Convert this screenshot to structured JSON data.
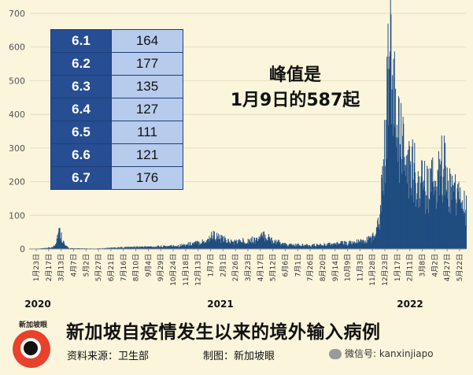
{
  "chart_data": {
    "type": "bar",
    "title": "新加坡自疫情发生以来的境外输入病例",
    "xlabel": "",
    "ylabel": "",
    "ylim": [
      0,
      700
    ],
    "yticks": [
      0,
      100,
      200,
      300,
      400,
      500,
      600,
      700
    ],
    "xlim": [
      "2020-01-23",
      "2022-06-10"
    ],
    "xtick_labels": [
      "1月23日",
      "2月17日",
      "3月13日",
      "4月7日",
      "5月2日",
      "5月27日",
      "6月21日",
      "7月16日",
      "8月10日",
      "9月4日",
      "9月29日",
      "10月24日",
      "11月18日",
      "12月13日",
      "1月7日",
      "2月1日",
      "2月26日",
      "3月23日",
      "4月17日",
      "5月12日",
      "6月6日",
      "7月1日",
      "7月26日",
      "8月20日",
      "9月14日",
      "10月9日",
      "11月3日",
      "11月28日",
      "12月23日",
      "1月17日",
      "2月11日",
      "3月8日",
      "4月2日",
      "4月27日",
      "5月22日"
    ],
    "year_labels": [
      "2020",
      "2021",
      "2022"
    ],
    "bar_color": "#1f4d80",
    "series_points": [
      {
        "x": "2020-01-23",
        "y": 0
      },
      {
        "x": "2020-02-20",
        "y": 2
      },
      {
        "x": "2020-03-08",
        "y": 5
      },
      {
        "x": "2020-03-14",
        "y": 20
      },
      {
        "x": "2020-03-18",
        "y": 45
      },
      {
        "x": "2020-03-21",
        "y": 52
      },
      {
        "x": "2020-03-26",
        "y": 35
      },
      {
        "x": "2020-04-01",
        "y": 10
      },
      {
        "x": "2020-04-10",
        "y": 2
      },
      {
        "x": "2020-06-01",
        "y": 1
      },
      {
        "x": "2020-07-10",
        "y": 4
      },
      {
        "x": "2020-08-20",
        "y": 6
      },
      {
        "x": "2020-10-01",
        "y": 7
      },
      {
        "x": "2020-11-15",
        "y": 10
      },
      {
        "x": "2020-12-20",
        "y": 18
      },
      {
        "x": "2021-01-10",
        "y": 25
      },
      {
        "x": "2021-01-20",
        "y": 42
      },
      {
        "x": "2021-02-05",
        "y": 30
      },
      {
        "x": "2021-03-01",
        "y": 20
      },
      {
        "x": "2021-04-20",
        "y": 28
      },
      {
        "x": "2021-05-05",
        "y": 40
      },
      {
        "x": "2021-05-20",
        "y": 25
      },
      {
        "x": "2021-06-15",
        "y": 12
      },
      {
        "x": "2021-08-01",
        "y": 10
      },
      {
        "x": "2021-09-15",
        "y": 14
      },
      {
        "x": "2021-10-20",
        "y": 18
      },
      {
        "x": "2021-11-20",
        "y": 22
      },
      {
        "x": "2021-12-10",
        "y": 40
      },
      {
        "x": "2021-12-20",
        "y": 110
      },
      {
        "x": "2021-12-27",
        "y": 230
      },
      {
        "x": "2022-01-03",
        "y": 420
      },
      {
        "x": "2022-01-09",
        "y": 587
      },
      {
        "x": "2022-01-14",
        "y": 480
      },
      {
        "x": "2022-01-22",
        "y": 350
      },
      {
        "x": "2022-02-01",
        "y": 300
      },
      {
        "x": "2022-02-15",
        "y": 240
      },
      {
        "x": "2022-03-05",
        "y": 210
      },
      {
        "x": "2022-03-25",
        "y": 170
      },
      {
        "x": "2022-04-15",
        "y": 210
      },
      {
        "x": "2022-04-25",
        "y": 250
      },
      {
        "x": "2022-05-10",
        "y": 170
      },
      {
        "x": "2022-05-25",
        "y": 150
      },
      {
        "x": "2022-06-10",
        "y": 110
      }
    ],
    "table": {
      "dates": [
        "6.1",
        "6.2",
        "6.3",
        "6.4",
        "6.5",
        "6.6",
        "6.7"
      ],
      "values": [
        "164",
        "177",
        "135",
        "127",
        "111",
        "121",
        "176"
      ]
    },
    "annotation": {
      "line1": "峰值是",
      "line2": "1月9日的587起"
    }
  },
  "footer": {
    "title": "新加坡自疫情发生以来的境外输入病例",
    "source": "资料来源：卫生部",
    "credit": "制图：新加坡眼",
    "wechat": "微信号: kanxinjiapo",
    "logo_text": "新加坡眼",
    "logo_icon": "eye-logo-icon"
  }
}
